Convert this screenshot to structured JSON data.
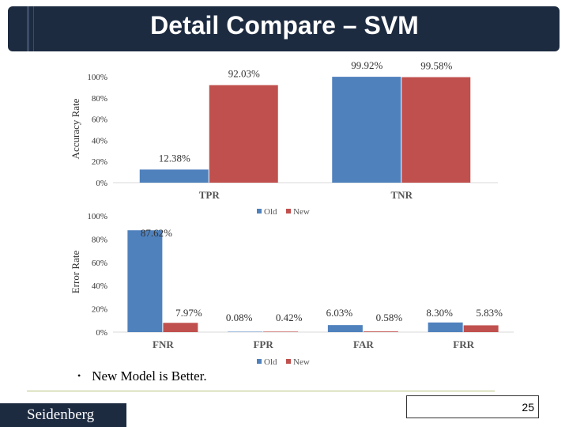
{
  "slide": {
    "title": "Detail Compare – SVM",
    "bullet": "New Model is Better.",
    "footer_logo": "Seidenberg",
    "page_number": "25"
  },
  "colors": {
    "old": "#4f81bd",
    "new": "#c0504d",
    "title_bg": "#1d2b41"
  },
  "chart_data": [
    {
      "type": "bar",
      "ylabel": "Accuracy Rate",
      "categories": [
        "TPR",
        "TNR"
      ],
      "yticks": [
        "0%",
        "20%",
        "40%",
        "60%",
        "80%",
        "100%"
      ],
      "ylim": [
        0,
        100
      ],
      "series": [
        {
          "name": "Old",
          "values": [
            12.38,
            99.92
          ],
          "labels": [
            "12.38%",
            "99.92%"
          ]
        },
        {
          "name": "New",
          "values": [
            92.03,
            99.58
          ],
          "labels": [
            "92.03%",
            "99.58%"
          ]
        }
      ],
      "legend": "bottom"
    },
    {
      "type": "bar",
      "ylabel": "Error Rate",
      "categories": [
        "FNR",
        "FPR",
        "FAR",
        "FRR"
      ],
      "yticks": [
        "0%",
        "20%",
        "40%",
        "60%",
        "80%",
        "100%"
      ],
      "ylim": [
        0,
        100
      ],
      "series": [
        {
          "name": "Old",
          "values": [
            87.62,
            0.08,
            6.03,
            8.3
          ],
          "labels": [
            "87.62%",
            "0.08%",
            "6.03%",
            "8.30%"
          ]
        },
        {
          "name": "New",
          "values": [
            7.97,
            0.42,
            0.58,
            5.83
          ],
          "labels": [
            "7.97%",
            "0.42%",
            "0.58%",
            "5.83%"
          ]
        }
      ],
      "legend": "top-right"
    }
  ]
}
